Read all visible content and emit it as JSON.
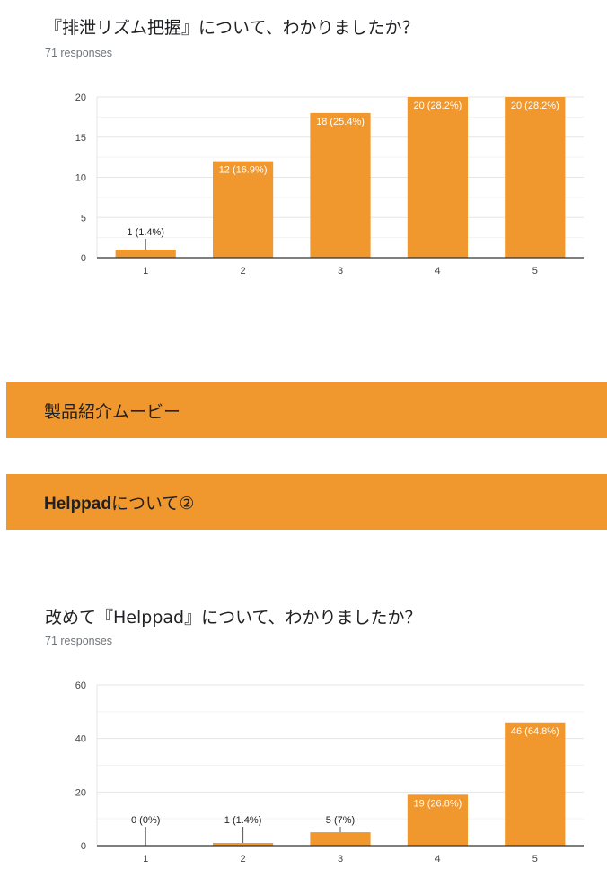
{
  "question1": {
    "title": "『排泄リズム把握』について、わかりましたか？",
    "responses": "71 responses"
  },
  "banner1": {
    "label": "製品紹介ムービー"
  },
  "banner2": {
    "label_bold": "Helppad",
    "label_rest": "について②"
  },
  "question2": {
    "title": "改めて『Helppad』について、わかりましたか？",
    "responses": "71 responses"
  },
  "colors": {
    "bar": "#f0982e",
    "banner": "#f0982e"
  },
  "chart_data": [
    {
      "type": "bar",
      "categories": [
        "1",
        "2",
        "3",
        "4",
        "5"
      ],
      "values": [
        1,
        12,
        18,
        20,
        20
      ],
      "data_labels": [
        "1 (1.4%)",
        "12 (16.9%)",
        "18 (25.4%)",
        "20 (28.2%)",
        "20 (28.2%)"
      ],
      "ylim": [
        0,
        20
      ],
      "yticks": [
        0,
        5,
        10,
        15,
        20
      ],
      "grid": true
    },
    {
      "type": "bar",
      "categories": [
        "1",
        "2",
        "3",
        "4",
        "5"
      ],
      "values": [
        0,
        1,
        5,
        19,
        46
      ],
      "data_labels": [
        "0 (0%)",
        "1 (1.4%)",
        "5 (7%)",
        "19 (26.8%)",
        "46 (64.8%)"
      ],
      "ylim": [
        0,
        60
      ],
      "yticks": [
        0,
        20,
        40,
        60
      ],
      "grid": true
    }
  ]
}
